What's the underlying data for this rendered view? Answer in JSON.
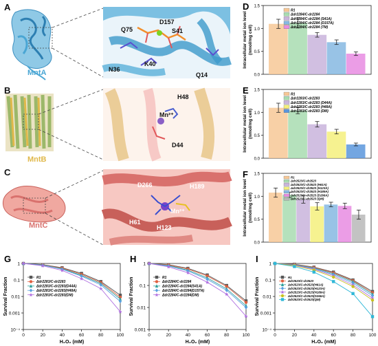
{
  "figure": {
    "panels": {
      "A": {
        "label": "A",
        "protein_name": "MntA",
        "name_color": "#4aa6d4",
        "residues": [
          "Q75",
          "D157",
          "S41",
          "N36",
          "K40",
          "Q14"
        ]
      },
      "B": {
        "label": "B",
        "protein_name": "MntB",
        "name_color": "#e0b84a",
        "residues": [
          "H48",
          "Mn²⁺",
          "D44"
        ]
      },
      "C": {
        "label": "C",
        "protein_name": "MntC",
        "name_color": "#d9716d",
        "residues": [
          "D266",
          "H189",
          "Mn²⁺",
          "H61",
          "H123"
        ]
      }
    }
  },
  "chart_data": [
    {
      "id": "D",
      "label": "D",
      "type": "bar",
      "ylabel": "Intracellular metal ion level (nmol/mg cell)",
      "ylim": [
        0,
        1.5
      ],
      "yticks": [
        0,
        0.5,
        1.0,
        1.5
      ],
      "series": [
        {
          "name": "R1",
          "value": 1.1,
          "err": 0.1,
          "color": "#f7c896"
        },
        {
          "name": "Δdr2284/C-dr2284",
          "value": 1.12,
          "err": 0.11,
          "color": "#a8dcb0"
        },
        {
          "name": "Δdr2284/C-dr2284 (S41A)",
          "value": 0.86,
          "err": 0.05,
          "color": "#c9b4dc"
        },
        {
          "name": "Δdr2284/C-dr2284 (D157A)",
          "value": 0.7,
          "err": 0.05,
          "color": "#86b8e2"
        },
        {
          "name": "Δdr2284/C-dr2284 (TM)",
          "value": 0.45,
          "err": 0.04,
          "color": "#e78ce2"
        }
      ]
    },
    {
      "id": "E",
      "label": "E",
      "type": "bar",
      "ylabel": "Intracellular metal ion level (nmol/mg cell)",
      "ylim": [
        0,
        1.5
      ],
      "yticks": [
        0,
        0.5,
        1.0,
        1.5
      ],
      "series": [
        {
          "name": "R1",
          "value": 1.1,
          "err": 0.1,
          "color": "#f7c896"
        },
        {
          "name": "Δdr2283/C-dr2283",
          "value": 1.04,
          "err": 0.07,
          "color": "#a8dcb0"
        },
        {
          "name": "Δdr2283/C-dr2283 (D44A)",
          "value": 0.74,
          "err": 0.06,
          "color": "#c9b4dc"
        },
        {
          "name": "Δdr2283/C-dr2283 (H48A)",
          "value": 0.58,
          "err": 0.05,
          "color": "#f4f07c"
        },
        {
          "name": "Δdr2283/C-dr2283 (DM)",
          "value": 0.3,
          "err": 0.03,
          "color": "#5a96dc"
        }
      ]
    },
    {
      "id": "F",
      "label": "F",
      "type": "bar",
      "ylabel": "Intracellular metal ion level (nmol/mg cell)",
      "ylim": [
        0,
        1.5
      ],
      "yticks": [
        0,
        0.5,
        1.0,
        1.5
      ],
      "series": [
        {
          "name": "R1",
          "value": 1.08,
          "err": 0.1,
          "color": "#f7c896"
        },
        {
          "name": "Δdr2523/C-dr2523",
          "value": 1.03,
          "err": 0.06,
          "color": "#a8dcb0"
        },
        {
          "name": "Δdr2523/C-dr2523 (H61A)",
          "value": 0.93,
          "err": 0.08,
          "color": "#c9b4dc"
        },
        {
          "name": "Δdr2523/C-dr2523 (H123A)",
          "value": 0.78,
          "err": 0.08,
          "color": "#f4f07c"
        },
        {
          "name": "Δdr2523/C-dr2523 (H189A)",
          "value": 0.82,
          "err": 0.05,
          "color": "#86b8e2"
        },
        {
          "name": "Δdr2523/C-dr2523 (D266A)",
          "value": 0.79,
          "err": 0.06,
          "color": "#e78ce2"
        },
        {
          "name": "Δdr2523/C-dr2523 (QM)",
          "value": 0.6,
          "err": 0.1,
          "color": "#b8b8b8"
        }
      ]
    },
    {
      "id": "G",
      "label": "G",
      "type": "line",
      "xlabel": "H₂O₂ (mM)",
      "ylabel": "Survival Fraction",
      "xlim": [
        0,
        100
      ],
      "xticks": [
        0,
        20,
        40,
        60,
        80,
        100
      ],
      "ylim": [
        0.0001,
        1
      ],
      "yscale": "log",
      "yticks": [
        1,
        0.1,
        0.01,
        0.001,
        0.0001
      ],
      "ytick_labels": [
        "1",
        "0.1",
        "0.01",
        "0.001",
        "10⁻⁴"
      ],
      "x": [
        0,
        20,
        40,
        60,
        80,
        100
      ],
      "series": [
        {
          "name": "R1",
          "color": "#555555",
          "marker": "square",
          "values": [
            1,
            0.85,
            0.55,
            0.25,
            0.08,
            0.012
          ]
        },
        {
          "name": "Δdr2283/C-dr2283",
          "color": "#e06040",
          "marker": "circle",
          "values": [
            1,
            0.82,
            0.52,
            0.22,
            0.07,
            0.009
          ]
        },
        {
          "name": "Δdr2283/C-dr2283(D44A)",
          "color": "#2e9f9a",
          "marker": "triangle",
          "values": [
            1,
            0.8,
            0.48,
            0.19,
            0.06,
            0.007
          ]
        },
        {
          "name": "Δdr2283/C-dr2283(H48A)",
          "color": "#5aa0e0",
          "marker": "diamond",
          "values": [
            1,
            0.78,
            0.45,
            0.17,
            0.05,
            0.005
          ]
        },
        {
          "name": "Δdr2283/C-dr2283(DM)",
          "color": "#b070e0",
          "marker": "star",
          "values": [
            1,
            0.72,
            0.38,
            0.12,
            0.03,
            0.0012
          ]
        }
      ]
    },
    {
      "id": "H",
      "label": "H",
      "type": "line",
      "xlabel": "H₂O₂ (mM)",
      "ylabel": "Survival Fraction",
      "xlim": [
        0,
        100
      ],
      "xticks": [
        0,
        20,
        40,
        60,
        80,
        100
      ],
      "ylim": [
        0.001,
        1
      ],
      "yscale": "log",
      "yticks": [
        1,
        0.1,
        0.01,
        0.001
      ],
      "ytick_labels": [
        "1",
        "0.1",
        "0.01",
        "0.001"
      ],
      "x": [
        0,
        20,
        40,
        60,
        80,
        100
      ],
      "series": [
        {
          "name": "R1",
          "color": "#555555",
          "marker": "square",
          "values": [
            1,
            0.88,
            0.6,
            0.3,
            0.1,
            0.02
          ]
        },
        {
          "name": "Δdr2284/C-dr2284",
          "color": "#e06040",
          "marker": "circle",
          "values": [
            1,
            0.85,
            0.56,
            0.27,
            0.09,
            0.017
          ]
        },
        {
          "name": "Δdr2284/C-dr2284(S41A)",
          "color": "#2e9f9a",
          "marker": "triangle",
          "values": [
            1,
            0.8,
            0.5,
            0.22,
            0.07,
            0.012
          ]
        },
        {
          "name": "Δdr2284/C-dr2284(D157A)",
          "color": "#5aa0e0",
          "marker": "diamond",
          "values": [
            1,
            0.77,
            0.46,
            0.19,
            0.06,
            0.01
          ]
        },
        {
          "name": "Δdr2284/C-dr2284(DM)",
          "color": "#b070e0",
          "marker": "star",
          "values": [
            1,
            0.7,
            0.38,
            0.14,
            0.04,
            0.004
          ]
        }
      ]
    },
    {
      "id": "I",
      "label": "I",
      "type": "line",
      "xlabel": "H₂O₂ (mM)",
      "ylabel": "Survival Fraction",
      "xlim": [
        0,
        100
      ],
      "xticks": [
        0,
        20,
        40,
        60,
        80,
        100
      ],
      "ylim": [
        0.0001,
        1
      ],
      "yscale": "log",
      "yticks": [
        1,
        0.1,
        0.01,
        0.001,
        0.0001
      ],
      "ytick_labels": [
        "1",
        "0.1",
        "0.01",
        "0.001",
        "10⁻⁴"
      ],
      "x": [
        0,
        20,
        40,
        60,
        80,
        100
      ],
      "series": [
        {
          "name": "R1",
          "color": "#555555",
          "marker": "square",
          "values": [
            1,
            0.9,
            0.6,
            0.3,
            0.1,
            0.02
          ]
        },
        {
          "name": "Δdr2523/C-dr2523",
          "color": "#e06040",
          "marker": "circle",
          "values": [
            1,
            0.87,
            0.57,
            0.27,
            0.09,
            0.017
          ]
        },
        {
          "name": "Δdr2523/C-dr2523(H61A)",
          "color": "#2e9f9a",
          "marker": "triangle",
          "values": [
            1,
            0.84,
            0.53,
            0.24,
            0.08,
            0.014
          ]
        },
        {
          "name": "Δdr2523/C-dr2523(H123A)",
          "color": "#5aa0e0",
          "marker": "diamond",
          "values": [
            1,
            0.81,
            0.49,
            0.21,
            0.065,
            0.011
          ]
        },
        {
          "name": "Δdr2523/C-dr2523(H189A)",
          "color": "#b070e0",
          "marker": "star",
          "values": [
            1,
            0.78,
            0.45,
            0.18,
            0.05,
            0.008
          ]
        },
        {
          "name": "Δdr2523/C-dr2523(D266A)",
          "color": "#c8c020",
          "marker": "circle",
          "values": [
            1,
            0.74,
            0.4,
            0.15,
            0.04,
            0.006
          ]
        },
        {
          "name": "Δdr2523/C-dr2523(QM)",
          "color": "#30b8d8",
          "marker": "square",
          "values": [
            1,
            0.65,
            0.3,
            0.08,
            0.015,
            0.0006
          ]
        }
      ]
    }
  ]
}
